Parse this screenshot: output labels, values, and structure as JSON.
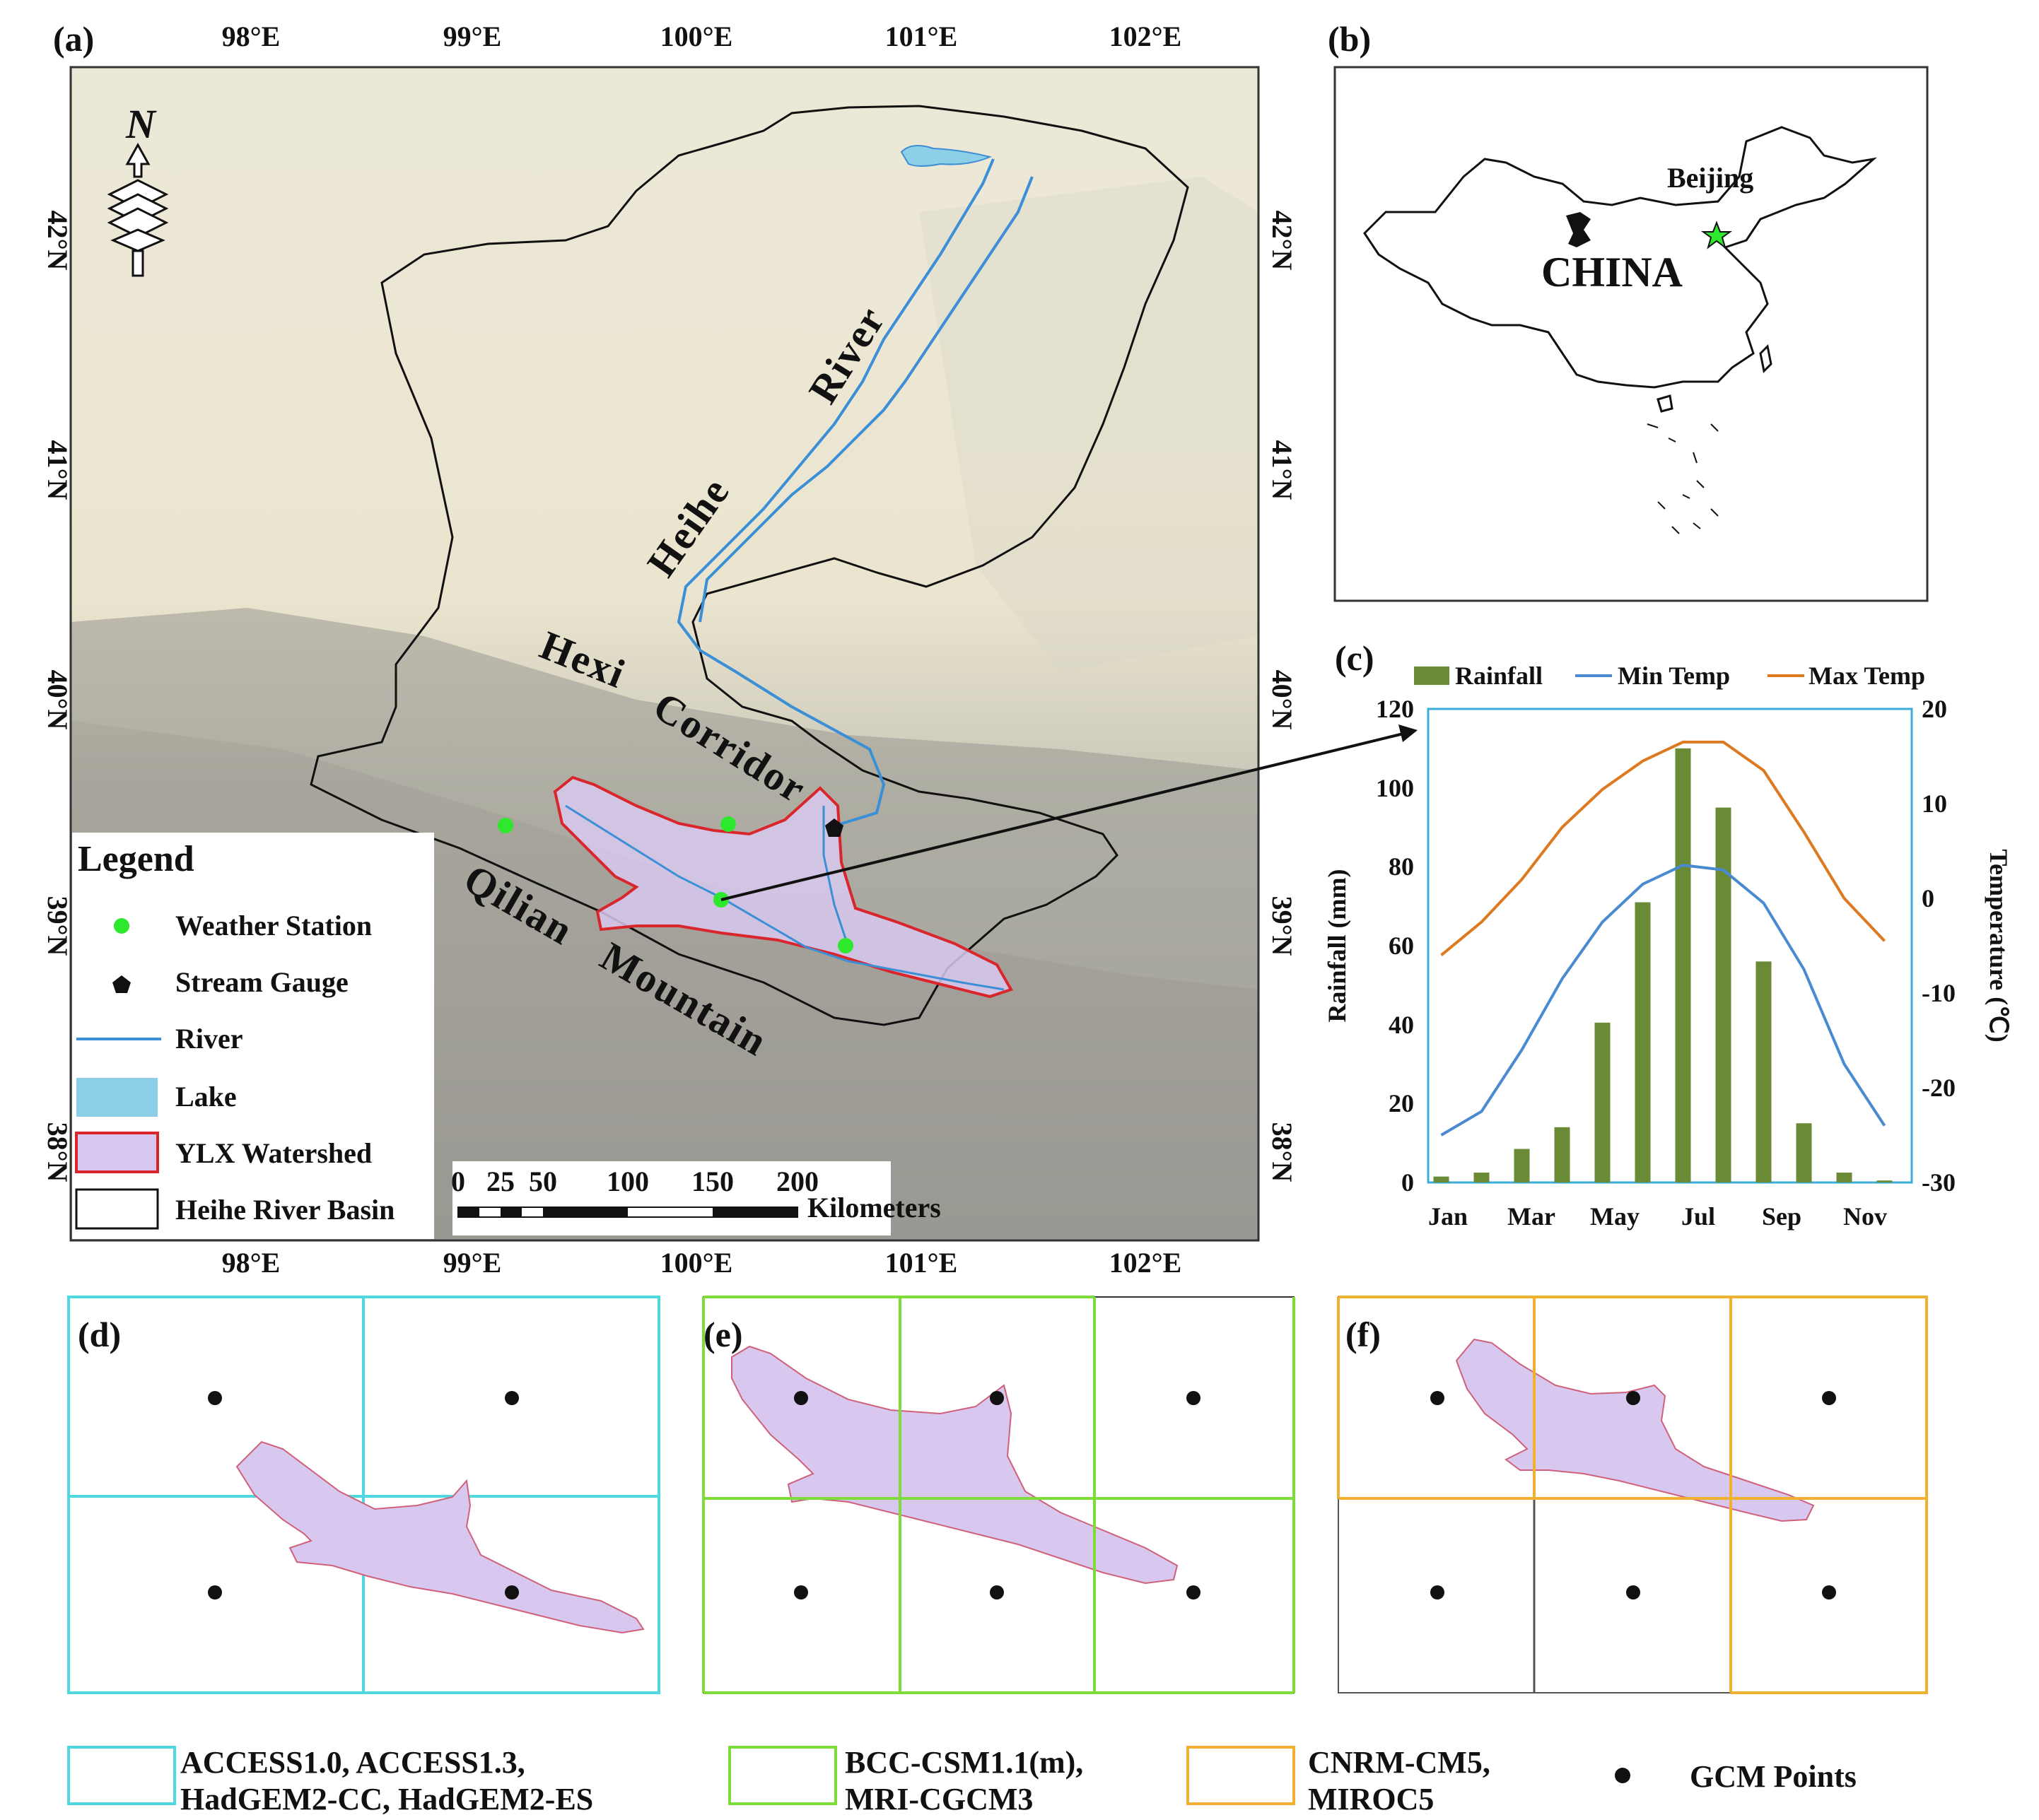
{
  "panel_a": {
    "label": "(a)",
    "lon_ticks": [
      "98°E",
      "99°E",
      "100°E",
      "101°E",
      "102°E"
    ],
    "lat_ticks": [
      "42°N",
      "41°N",
      "40°N",
      "39°N",
      "38°N"
    ],
    "north_arrow": "N",
    "place_labels": {
      "river": "River",
      "heihe": "Heihe",
      "hexi": "Hexi",
      "corridor": "Corridor",
      "qilian": "Qilian",
      "mountain": "Mountain"
    },
    "legend": {
      "title": "Legend",
      "items": [
        "Weather Station",
        "Stream Gauge",
        "River",
        "Lake",
        "YLX Watershed",
        "Heihe River Basin"
      ]
    },
    "scale": {
      "ticks": [
        "0",
        "25",
        "50",
        "100",
        "150",
        "200"
      ],
      "unit": "Kilometers"
    },
    "colors": {
      "river": "#3a8fd6",
      "lake": "#8ecfe8",
      "watershed_fill": "#d8c8ef",
      "watershed_edge": "#d9262c",
      "station": "#2ee82e"
    }
  },
  "panel_b": {
    "label": "(b)",
    "country": "CHINA",
    "city": "Beijing"
  },
  "panel_c": {
    "label": "(c)",
    "legend": [
      "Rainfall",
      "Min Temp",
      "Max Temp"
    ],
    "y_left_label": "Rainfall (mm)",
    "y_right_label": "Temperature (℃)",
    "left_ticks": [
      "0",
      "20",
      "40",
      "60",
      "80",
      "100",
      "120"
    ],
    "right_ticks": [
      "-30",
      "-20",
      "-10",
      "0",
      "10",
      "20"
    ],
    "x_ticks": [
      "Jan",
      "Mar",
      "May",
      "Jul",
      "Sep",
      "Nov"
    ]
  },
  "chart_data": {
    "type": "bar",
    "categories": [
      "Jan",
      "Feb",
      "Mar",
      "Apr",
      "May",
      "Jun",
      "Jul",
      "Aug",
      "Sep",
      "Oct",
      "Nov",
      "Dec"
    ],
    "series": [
      {
        "name": "Rainfall",
        "axis": "left",
        "type": "bar",
        "values": [
          1.5,
          2.5,
          8.5,
          14,
          40.5,
          71,
          110,
          95,
          56,
          15,
          2.5,
          0.5
        ]
      },
      {
        "name": "Min Temp",
        "axis": "right",
        "type": "line",
        "values": [
          -25,
          -22.5,
          -16,
          -8.5,
          -2.5,
          1.5,
          3.5,
          3,
          -0.5,
          -7.5,
          -17.5,
          -24
        ]
      },
      {
        "name": "Max Temp",
        "axis": "right",
        "type": "line",
        "values": [
          -6,
          -2.5,
          2,
          7.5,
          11.5,
          14.5,
          16.5,
          16.5,
          13.5,
          7,
          0,
          -4.5
        ]
      }
    ],
    "ylim_left": [
      0,
      120
    ],
    "ylim_right": [
      -30,
      20
    ],
    "colors": {
      "Rainfall": "#6a8a36",
      "Min Temp": "#4a8ad0",
      "Max Temp": "#dd7a20",
      "frame": "#3aaed8"
    }
  },
  "panels_grid": {
    "d_label": "(d)",
    "e_label": "(e)",
    "f_label": "(f)",
    "colors": {
      "d": "#4fd8e0",
      "e": "#7ddc3a",
      "f": "#f0b030"
    }
  },
  "bottom_legend": {
    "d_models": [
      "ACCESS1.0, ACCESS1.3,",
      "HadGEM2-CC, HadGEM2-ES"
    ],
    "e_models": [
      "BCC-CSM1.1(m),",
      "MRI-CGCM3"
    ],
    "f_models": [
      "CNRM-CM5,",
      "MIROC5"
    ],
    "points": "GCM Points"
  }
}
